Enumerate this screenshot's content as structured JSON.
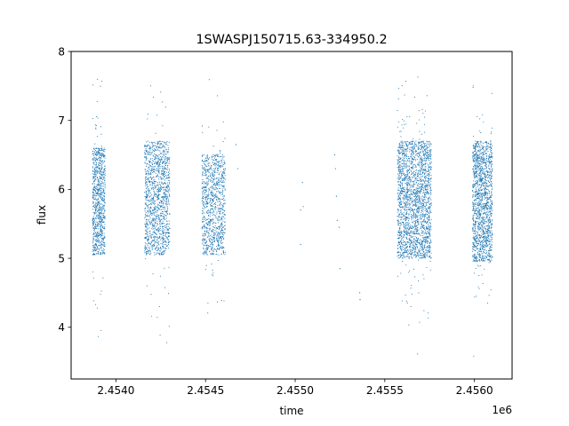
{
  "chart_data": {
    "type": "scatter",
    "title": "1SWASPJ150715.63-334950.2",
    "xlabel": "time",
    "ylabel": "flux",
    "x_offset_label": "1e6",
    "xlim": [
      2453750,
      2456210
    ],
    "ylim": [
      3.25,
      8.0
    ],
    "xticks": [
      2454000,
      2454500,
      2455000,
      2455500,
      2456000
    ],
    "xtick_labels": [
      "2.4540",
      "2.4545",
      "2.4550",
      "2.4555",
      "2.4560"
    ],
    "yticks": [
      4,
      5,
      6,
      7,
      8
    ],
    "ytick_labels": [
      "4",
      "5",
      "6",
      "7",
      "8"
    ],
    "marker_color": "#1f77b4",
    "grid": false,
    "legend": false,
    "clusters": [
      {
        "x_start": 2453870,
        "x_end": 2453940,
        "core_min": 5.05,
        "core_max": 6.6,
        "tail_min": 3.5,
        "tail_max": 7.65,
        "count": 900
      },
      {
        "x_start": 2454160,
        "x_end": 2454300,
        "core_min": 5.05,
        "core_max": 6.7,
        "tail_min": 3.6,
        "tail_max": 7.55,
        "count": 1300
      },
      {
        "x_start": 2454480,
        "x_end": 2454610,
        "core_min": 5.05,
        "core_max": 6.5,
        "tail_min": 3.5,
        "tail_max": 7.8,
        "count": 1000
      },
      {
        "x_start": 2455570,
        "x_end": 2455760,
        "core_min": 5.0,
        "core_max": 6.7,
        "tail_min": 3.5,
        "tail_max": 7.7,
        "count": 2200
      },
      {
        "x_start": 2455990,
        "x_end": 2456100,
        "core_min": 4.95,
        "core_max": 6.7,
        "tail_min": 3.5,
        "tail_max": 7.6,
        "count": 1500
      }
    ],
    "sparse_points": [
      {
        "x": 2454670,
        "y": 6.65
      },
      {
        "x": 2454680,
        "y": 6.3
      },
      {
        "x": 2455030,
        "y": 5.7
      },
      {
        "x": 2455030,
        "y": 5.2
      },
      {
        "x": 2455040,
        "y": 6.1
      },
      {
        "x": 2455045,
        "y": 5.75
      },
      {
        "x": 2455220,
        "y": 6.5
      },
      {
        "x": 2455225,
        "y": 6.3
      },
      {
        "x": 2455230,
        "y": 5.9
      },
      {
        "x": 2455235,
        "y": 5.55
      },
      {
        "x": 2455245,
        "y": 5.45
      },
      {
        "x": 2455250,
        "y": 4.85
      },
      {
        "x": 2455360,
        "y": 4.5
      },
      {
        "x": 2455362,
        "y": 4.4
      }
    ]
  }
}
